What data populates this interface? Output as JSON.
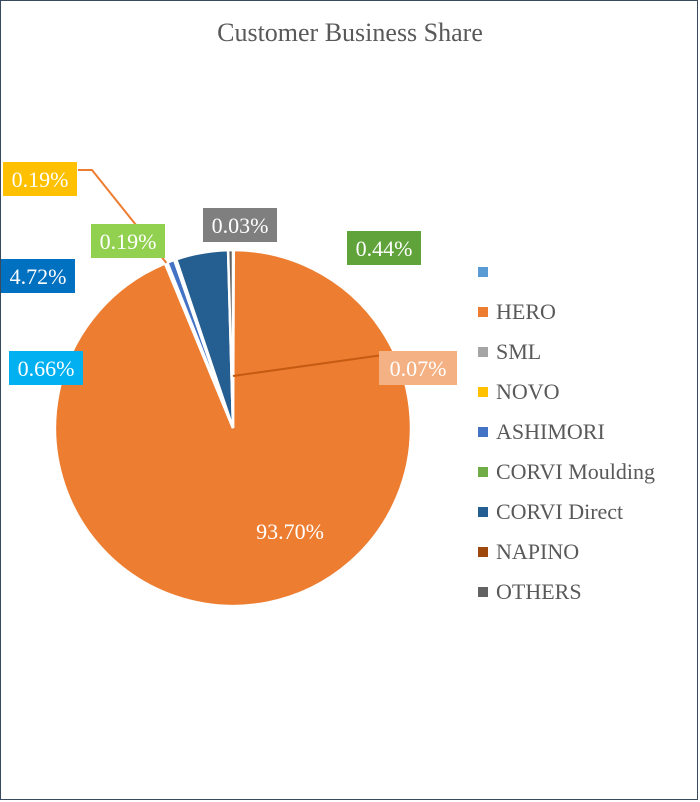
{
  "chart_data": {
    "type": "pie",
    "title": "Customer Business Share",
    "categories": [
      "",
      "HERO",
      "SML",
      "NOVO",
      "ASHIMORI",
      "CORVI Moulding",
      "CORVI Direct",
      "NAPINO",
      "OTHERS"
    ],
    "values": [
      0.07,
      93.7,
      0.03,
      0.19,
      0.66,
      0.19,
      4.72,
      0.0,
      0.44
    ],
    "value_labels": [
      "0.07%",
      "93.70%",
      "0.03%",
      "0.19%",
      "0.66%",
      "0.19%",
      "4.72%",
      "",
      "0.44%"
    ],
    "colors": [
      "#5b9bd5",
      "#ed7d31",
      "#a5a5a5",
      "#ffc000",
      "#4472c4",
      "#70ad47",
      "#255e91",
      "#9e480e",
      "#636363"
    ],
    "label_colors": [
      "#f4b183",
      "#ed7d31",
      "#7f7f7f",
      "#ffc000",
      "#00b0f0",
      "#92d050",
      "#0070c0",
      "#9e480e",
      "#5fa33a"
    ],
    "start_angle_deg": 0,
    "direction": "clockwise",
    "legend_position": "right"
  }
}
